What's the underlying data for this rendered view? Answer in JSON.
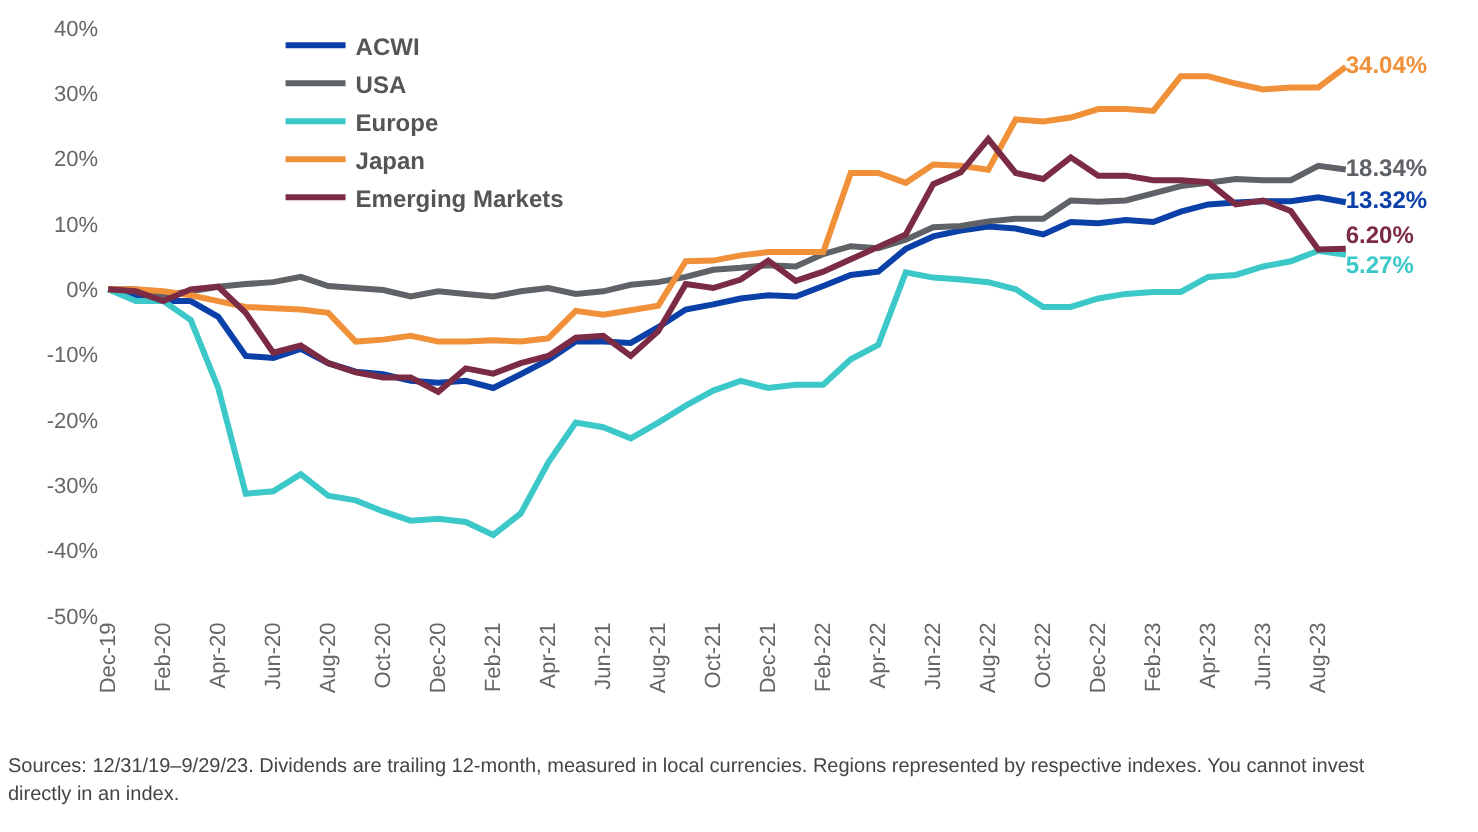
{
  "chart_data": {
    "type": "line",
    "categories": [
      "Dec-19",
      null,
      "Feb-20",
      null,
      "Apr-20",
      null,
      "Jun-20",
      null,
      "Aug-20",
      null,
      "Oct-20",
      null,
      "Dec-20",
      null,
      "Feb-21",
      null,
      "Apr-21",
      null,
      "Jun-21",
      null,
      "Aug-21",
      null,
      "Oct-21",
      null,
      "Dec-21",
      null,
      "Feb-22",
      null,
      "Apr-22",
      null,
      "Jun-22",
      null,
      "Aug-22",
      null,
      "Oct-22",
      null,
      "Dec-22",
      null,
      "Feb-23",
      null,
      "Apr-23",
      null,
      "Jun-23",
      null,
      "Aug-23",
      null
    ],
    "series": [
      {
        "name": "ACWI",
        "color": "#0b40a8",
        "values": [
          0,
          -1,
          -1.8,
          -1.8,
          -4.2,
          -10.2,
          -10.5,
          -9.1,
          -11.3,
          -12.6,
          -13,
          -14,
          -14.3,
          -14,
          -15.1,
          -13,
          -10.8,
          -8,
          -8,
          -8.2,
          -5.8,
          -3.1,
          -2.3,
          -1.4,
          -0.9,
          -1.1,
          0.5,
          2.2,
          2.7,
          6.2,
          8.1,
          9,
          9.6,
          9.3,
          8.4,
          10.3,
          10.1,
          10.6,
          10.3,
          11.9,
          13,
          13.3,
          13.5,
          13.5,
          14.1,
          13.32
        ],
        "value_labels": [
          null,
          null,
          null,
          null,
          null,
          null,
          null,
          null,
          null,
          null,
          null,
          null,
          null,
          null,
          null,
          null,
          null,
          null,
          null,
          null,
          null,
          null,
          null,
          null,
          null,
          null,
          null,
          null,
          null,
          null,
          null,
          null,
          null,
          null,
          null,
          null,
          null,
          null,
          null,
          null,
          null,
          null,
          null,
          null,
          null,
          "13.32%"
        ]
      },
      {
        "name": "USA",
        "color": "#5f6368",
        "values": [
          0,
          0,
          -0.9,
          -0.3,
          0.4,
          0.8,
          1.1,
          1.9,
          0.5,
          0.2,
          -0.1,
          -1.1,
          -0.3,
          -0.7,
          -1.1,
          -0.3,
          0.2,
          -0.7,
          -0.3,
          0.7,
          1.1,
          1.9,
          3,
          3.3,
          3.7,
          3.5,
          5.4,
          6.6,
          6.3,
          7.6,
          9.5,
          9.7,
          10.4,
          10.8,
          10.8,
          13.6,
          13.4,
          13.6,
          14.7,
          15.8,
          16.3,
          16.9,
          16.7,
          16.7,
          18.9,
          18.34
        ],
        "value_labels": [
          null,
          null,
          null,
          null,
          null,
          null,
          null,
          null,
          null,
          null,
          null,
          null,
          null,
          null,
          null,
          null,
          null,
          null,
          null,
          null,
          null,
          null,
          null,
          null,
          null,
          null,
          null,
          null,
          null,
          null,
          null,
          null,
          null,
          null,
          null,
          null,
          null,
          null,
          null,
          null,
          null,
          null,
          null,
          null,
          null,
          "18.34%"
        ]
      },
      {
        "name": "Europe",
        "color": "#3cc8c8",
        "values": [
          0,
          -1.8,
          -1.8,
          -4.7,
          -15.1,
          -31.3,
          -30.9,
          -28.3,
          -31.6,
          -32.3,
          -34,
          -35.4,
          -35.1,
          -35.6,
          -37.6,
          -34.3,
          -26.5,
          -20.4,
          -21.1,
          -22.8,
          -20.4,
          -17.8,
          -15.5,
          -14,
          -15.1,
          -14.6,
          -14.6,
          -10.7,
          -8.5,
          2.6,
          1.8,
          1.5,
          1.1,
          0,
          -2.7,
          -2.7,
          -1.4,
          -0.7,
          -0.4,
          -0.4,
          1.9,
          2.2,
          3.5,
          4.3,
          5.9,
          5.27
        ],
        "value_labels": [
          null,
          null,
          null,
          null,
          null,
          null,
          null,
          null,
          null,
          null,
          null,
          null,
          null,
          null,
          null,
          null,
          null,
          null,
          null,
          null,
          null,
          null,
          null,
          null,
          null,
          null,
          null,
          null,
          null,
          null,
          null,
          null,
          null,
          null,
          null,
          null,
          null,
          null,
          null,
          null,
          null,
          null,
          null,
          null,
          null,
          "5.27%"
        ]
      },
      {
        "name": "Japan",
        "color": "#f0913a",
        "values": [
          0,
          0,
          -0.3,
          -0.9,
          -1.8,
          -2.7,
          -2.9,
          -3.1,
          -3.6,
          -8,
          -7.7,
          -7.1,
          -8,
          -8,
          -7.8,
          -8,
          -7.5,
          -3.3,
          -3.9,
          -3.2,
          -2.5,
          4.3,
          4.4,
          5.2,
          5.7,
          5.7,
          5.7,
          17.8,
          17.8,
          16.3,
          19.1,
          18.9,
          18.3,
          26,
          25.7,
          26.3,
          27.6,
          27.6,
          27.3,
          32.6,
          32.6,
          31.5,
          30.6,
          30.9,
          30.9,
          34.04
        ],
        "value_labels": [
          null,
          null,
          null,
          null,
          null,
          null,
          null,
          null,
          null,
          null,
          null,
          null,
          null,
          null,
          null,
          null,
          null,
          null,
          null,
          null,
          null,
          null,
          null,
          null,
          null,
          null,
          null,
          null,
          null,
          null,
          null,
          null,
          null,
          null,
          null,
          null,
          null,
          null,
          null,
          null,
          null,
          null,
          null,
          null,
          null,
          "34.04%"
        ]
      },
      {
        "name": "Emerging Markets",
        "color": "#7b2c44",
        "values": [
          0,
          -0.3,
          -1.8,
          0,
          0.4,
          -3.6,
          -9.7,
          -8.6,
          -11.3,
          -12.7,
          -13.5,
          -13.5,
          -15.7,
          -12.1,
          -12.9,
          -11.3,
          -10.2,
          -7.4,
          -7.1,
          -10.2,
          -6.4,
          0.8,
          0.2,
          1.5,
          4.4,
          1.3,
          2.7,
          4.6,
          6.5,
          8.4,
          16.1,
          17.9,
          23,
          17.8,
          16.9,
          20.2,
          17.4,
          17.4,
          16.7,
          16.7,
          16.4,
          13,
          13.6,
          12,
          6.1,
          6.2
        ],
        "value_labels": [
          null,
          null,
          null,
          null,
          null,
          null,
          null,
          null,
          null,
          null,
          null,
          null,
          null,
          null,
          null,
          null,
          null,
          null,
          null,
          null,
          null,
          null,
          null,
          null,
          null,
          null,
          null,
          null,
          null,
          null,
          null,
          null,
          null,
          null,
          null,
          null,
          null,
          null,
          null,
          null,
          null,
          null,
          null,
          null,
          null,
          "6.20%"
        ]
      }
    ],
    "ylim": [
      -50,
      40
    ],
    "yticks": [
      {
        "value": 40,
        "label": "40%"
      },
      {
        "value": 30,
        "label": "30%"
      },
      {
        "value": 20,
        "label": "20%"
      },
      {
        "value": 10,
        "label": "10%"
      },
      {
        "value": 0,
        "label": "0%"
      },
      {
        "value": -10,
        "label": "-10%"
      },
      {
        "value": -20,
        "label": "-20%"
      },
      {
        "value": -30,
        "label": "-30%"
      },
      {
        "value": -40,
        "label": "-40%"
      },
      {
        "value": -50,
        "label": "-50%"
      }
    ],
    "legend": "top left",
    "annotations": [
      "Sources: 12/31/19–9/29/23. Dividends are trailing 12-month, measured in local currencies. Regions represented by respective indexes. You cannot invest directly in an index."
    ]
  }
}
